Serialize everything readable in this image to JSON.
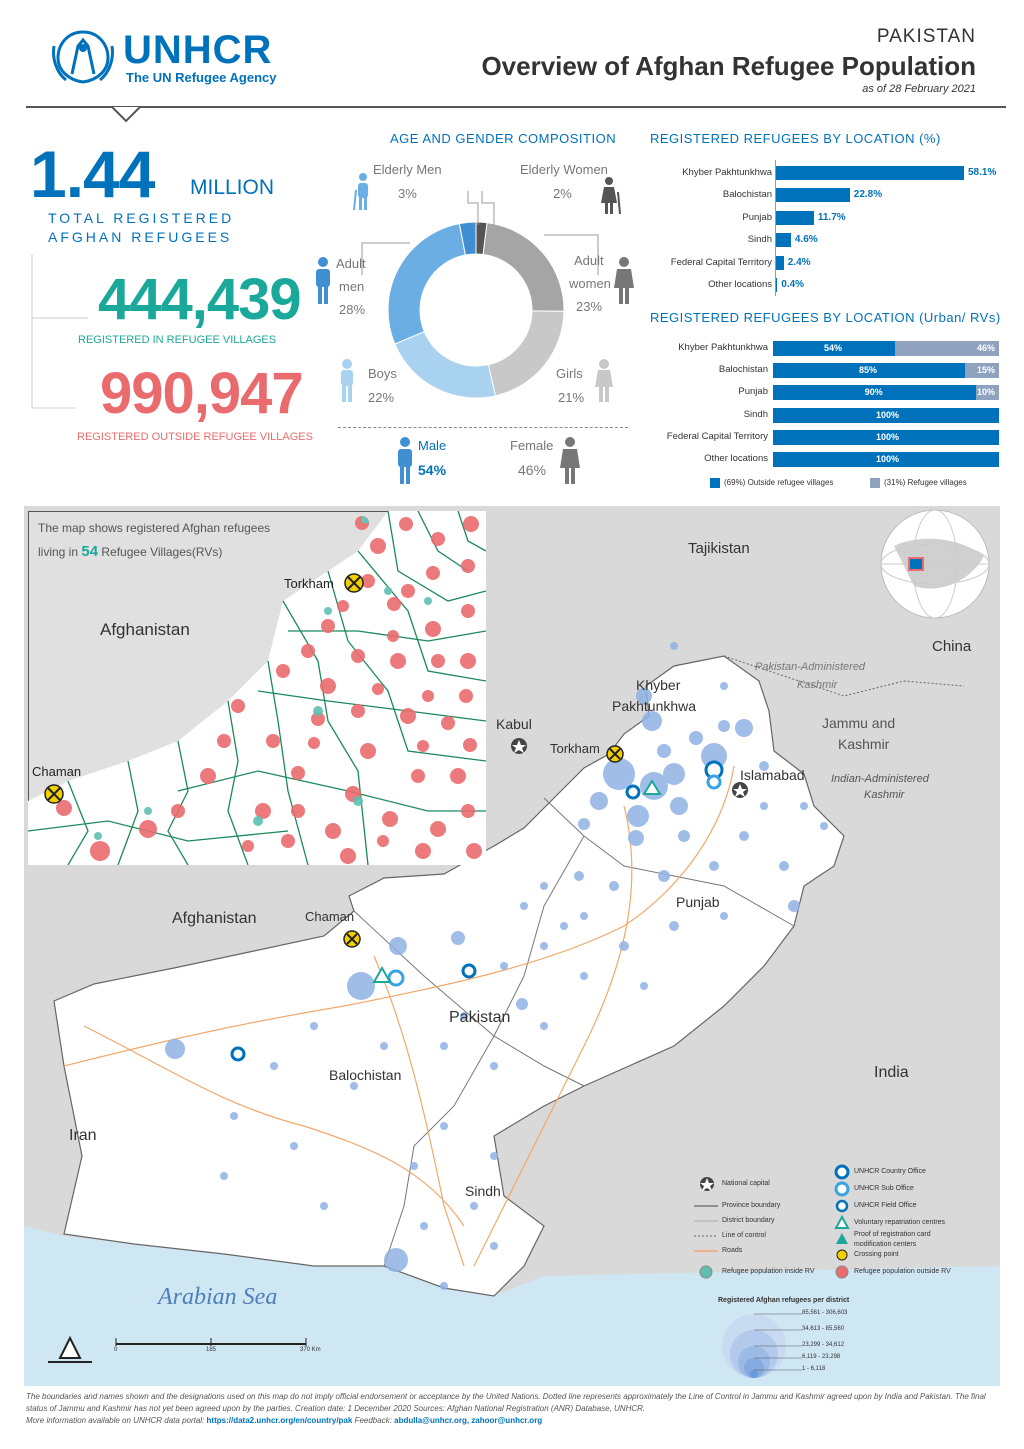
{
  "header": {
    "logo_name": "UNHCR",
    "logo_tagline": "The UN Refugee Agency",
    "country": "PAKISTAN",
    "title": "Overview of Afghan Refugee Population",
    "date": "as of 28 February 2021"
  },
  "kpis": {
    "total_value": "1.44",
    "total_unit": "MILLION",
    "total_label_1": "TOTAL REGISTERED",
    "total_label_2": "AFGHAN REFUGEES",
    "in_rv_value": "444,439",
    "in_rv_label": "REGISTERED IN REFUGEE VILLAGES",
    "out_rv_value": "990,947",
    "out_rv_label": "REGISTERED OUTSIDE REFUGEE VILLAGES",
    "colors": {
      "blue": "#0072bc",
      "green": "#1aa89a",
      "red": "#ea6b6e"
    }
  },
  "age_gender": {
    "title": "AGE AND GENDER COMPOSITION",
    "groups": [
      {
        "label": "Elderly Men",
        "pct": "3%",
        "value": 3,
        "color": "#3f8fd2"
      },
      {
        "label": "Adult men",
        "label_line1": "Adult",
        "label_line2": "men",
        "pct": "28%",
        "value": 28,
        "color": "#6aaee4"
      },
      {
        "label": "Boys",
        "pct": "22%",
        "value": 22,
        "color": "#a9d1f0"
      },
      {
        "label": "Girls",
        "pct": "21%",
        "value": 21,
        "color": "#c8c8c8"
      },
      {
        "label": "Adult women",
        "label_line1": "Adult",
        "label_line2": "women",
        "pct": "23%",
        "value": 23,
        "color": "#a5a5a5"
      },
      {
        "label": "Elderly Women",
        "pct": "2%",
        "value": 2,
        "color": "#555555"
      }
    ],
    "male_label": "Male",
    "male_pct": "54%",
    "female_label": "Female",
    "female_pct": "46%"
  },
  "by_location": {
    "title": "REGISTERED REFUGEES BY LOCATION (%)",
    "bars": [
      {
        "label": "Khyber Pakhtunkhwa",
        "value": 58.1,
        "text": "58.1%"
      },
      {
        "label": "Balochistan",
        "value": 22.8,
        "text": "22.8%"
      },
      {
        "label": "Punjab",
        "value": 11.7,
        "text": "11.7%"
      },
      {
        "label": "Sindh",
        "value": 4.6,
        "text": "4.6%"
      },
      {
        "label": "Federal Capital Territory",
        "value": 2.4,
        "text": "2.4%"
      },
      {
        "label": "Other locations",
        "value": 0.4,
        "text": "0.4%"
      }
    ]
  },
  "urban_rv": {
    "title": "REGISTERED REFUGEES BY LOCATION (Urban/ RVs)",
    "bars": [
      {
        "label": "Khyber Pakhtunkhwa",
        "outside": 54,
        "inside": 46,
        "outside_text": "54%",
        "inside_text": "46%"
      },
      {
        "label": "Balochistan",
        "outside": 85,
        "inside": 15,
        "outside_text": "85%",
        "inside_text": "15%"
      },
      {
        "label": "Punjab",
        "outside": 90,
        "inside": 10,
        "outside_text": "90%",
        "inside_text": "10%"
      },
      {
        "label": "Sindh",
        "outside": 100,
        "inside": 0,
        "outside_text": "100%",
        "inside_text": ""
      },
      {
        "label": "Federal Capital Territory",
        "outside": 100,
        "inside": 0,
        "outside_text": "100%",
        "inside_text": ""
      },
      {
        "label": "Other locations",
        "outside": 100,
        "inside": 0,
        "outside_text": "100%",
        "inside_text": ""
      }
    ],
    "legend_outside": "(69%) Outside refugee villages",
    "legend_inside": "(31%) Refugee villages",
    "color_outside": "#0072bc",
    "color_inside": "#8fa3bf"
  },
  "inset": {
    "caption_1": "The map shows registered Afghan refugees",
    "caption_2a": "living in ",
    "caption_num": "54",
    "caption_2b": " Refugee Villages(RVs)",
    "torkham": "Torkham",
    "chaman": "Chaman",
    "afghanistan": "Afghanistan"
  },
  "map": {
    "labels": {
      "tajikistan": "Tajikistan",
      "china": "China",
      "pak_kashmir_1": "Pakistan-Administered",
      "pak_kashmir_2": "Kashmir",
      "jk_1": "Jammu and",
      "jk_2": "Kashmir",
      "ind_kashmir_1": "Indian-Administered",
      "ind_kashmir_2": "Kashmir",
      "kp_1": "Khyber",
      "kp_2": "Pakhtunkhwa",
      "kabul": "Kabul",
      "torkham": "Torkham",
      "islamabad": "Islamabad",
      "punjab": "Punjab",
      "afghanistan": "Afghanistan",
      "chaman": "Chaman",
      "pakistan": "Pakistan",
      "balochistan": "Balochistan",
      "iran": "Iran",
      "india": "India",
      "sindh": "Sindh",
      "arabian_sea": "Arabian Sea"
    },
    "legend": {
      "national_capital": "National capital",
      "province_boundary": "Province boundary",
      "district_boundary": "District boundary",
      "line_of_control": "Line of control",
      "roads": "Roads",
      "country_office": "UNHCR Country Office",
      "sub_office": "UNHCR Sub Office",
      "field_office": "UNHCR Field Office",
      "repatriation": "Voluntary repatriation centres",
      "por_centres_1": "Proof of registration card",
      "por_centres_2": "modification centers",
      "crossing": "Crossing point",
      "inside_rv": "Refugee population inside RV",
      "outside_rv": "Refugee population outside RV",
      "size_title": "Registered Afghan refugees per district",
      "sizes": [
        "85,561 - 306,603",
        "34,613 - 85,560",
        "23,299 - 34,612",
        "6,119 - 23,298",
        "1 - 6,118"
      ]
    },
    "scale": {
      "zero": "0",
      "mid": "185",
      "max": "370 Km"
    }
  },
  "footnote": {
    "text": "The boundaries and names shown and the designations used on this map do not imply official endorsement or acceptance by the United Nations. Dotted line represents approximately the Line of Control in Jammu and Kashmir agreed upon by India and Pakistan. The final status of Jammu and Kashmir has not yet been agreed upon by the parties. Creation date: 1 December 2020 Sources: Afghan National Registration (ANR) Database, UNHCR.",
    "more_info": "More information available on UNHCR data portal: ",
    "link": "https://data2.unhcr.org/en/country/pak",
    "feedback_label": " Feedback: ",
    "emails": "abdulla@unhcr.org, zahoor@unhcr.org"
  }
}
